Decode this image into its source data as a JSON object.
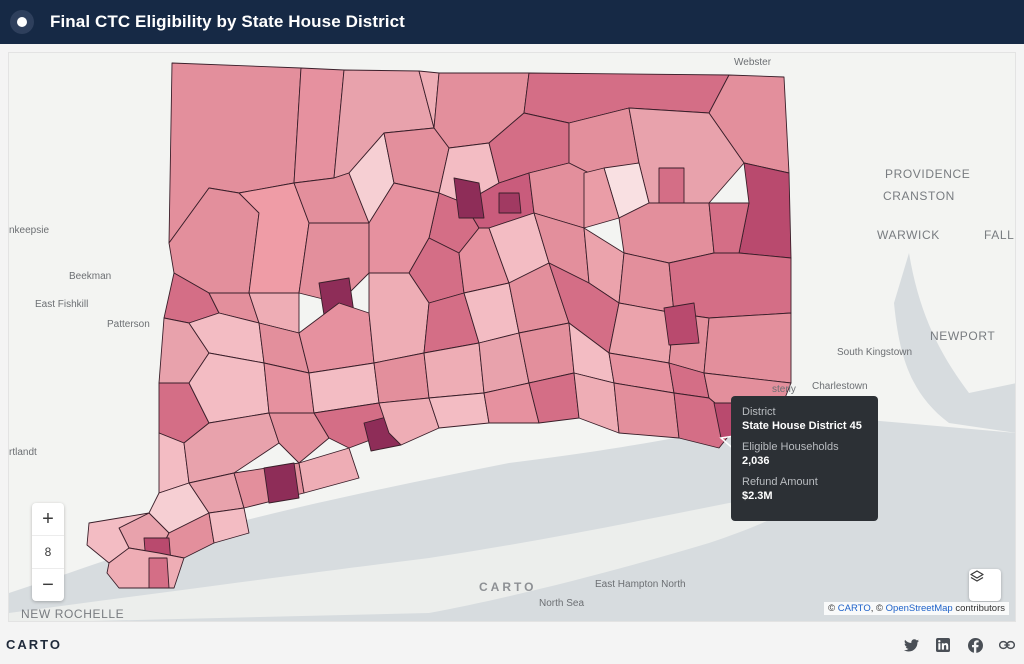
{
  "header": {
    "title": "Final CTC Eligibility by State House District"
  },
  "map": {
    "places": [
      {
        "name": "Webster",
        "big": false
      },
      {
        "name": "PROVIDENCE",
        "big": true
      },
      {
        "name": "CRANSTON",
        "big": true
      },
      {
        "name": "WARWICK",
        "big": true
      },
      {
        "name": "FALL",
        "big": true
      },
      {
        "name": "NEWPORT",
        "big": true
      },
      {
        "name": "South Kingstown",
        "big": false
      },
      {
        "name": "Charlestown",
        "big": false
      },
      {
        "name": "sterly",
        "big": false
      },
      {
        "name": "nkeepsie",
        "big": false
      },
      {
        "name": "Beekman",
        "big": false
      },
      {
        "name": "East Fishkill",
        "big": false
      },
      {
        "name": "Patterson",
        "big": false
      },
      {
        "name": "rtlandt",
        "big": false
      },
      {
        "name": "NEW ROCHELLE",
        "big": true
      },
      {
        "name": "East Hampton North",
        "big": false
      },
      {
        "name": "North Sea",
        "big": false
      }
    ],
    "watermark": "CARTO",
    "zoom": {
      "plus": "+",
      "level": "8",
      "minus": "−"
    },
    "attribution": {
      "prefix": "©",
      "carto": "CARTO",
      "sep": ", ©",
      "osm": "OpenStreetMap",
      "suffix": "contributors"
    }
  },
  "tooltip": {
    "district_label": "District",
    "district_value": "State House District 45",
    "households_label": "Eligible Households",
    "households_value": "2,036",
    "refund_label": "Refund Amount",
    "refund_value": "$2.3M"
  },
  "footer": {
    "brand": "CARTO",
    "icons": [
      "twitter-icon",
      "linkedin-icon",
      "facebook-icon",
      "link-icon"
    ]
  },
  "colors": {
    "header_bg": "#162945",
    "very_light": "#f6cfd3",
    "light": "#eeadb5",
    "mid": "#e38f9c",
    "dark": "#d46e86",
    "darker": "#b94a6e",
    "darkest": "#8e2d58"
  }
}
